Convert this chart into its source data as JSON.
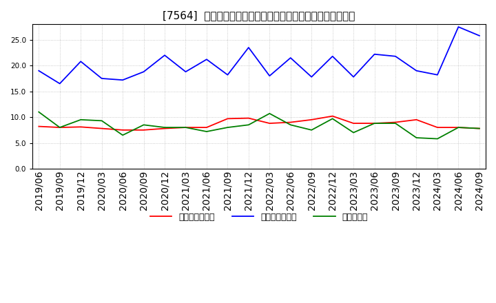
{
  "title": "[7564]  売上債権回転率、買入債務回転率、在庫回転率の推移",
  "dates": [
    "2019/06",
    "2019/09",
    "2019/12",
    "2020/03",
    "2020/06",
    "2020/09",
    "2020/12",
    "2021/03",
    "2021/06",
    "2021/09",
    "2021/12",
    "2022/03",
    "2022/06",
    "2022/09",
    "2022/12",
    "2023/03",
    "2023/06",
    "2023/09",
    "2023/12",
    "2024/03",
    "2024/06",
    "2024/09"
  ],
  "accounts_receivable_turnover": [
    8.2,
    8.0,
    8.1,
    7.8,
    7.5,
    7.5,
    7.8,
    8.0,
    8.0,
    9.7,
    9.8,
    8.8,
    9.0,
    9.5,
    10.2,
    8.8,
    8.8,
    9.0,
    9.5,
    8.0,
    8.0,
    7.8
  ],
  "accounts_payable_turnover": [
    19.0,
    16.5,
    20.8,
    17.5,
    17.2,
    18.8,
    22.0,
    18.8,
    21.2,
    18.2,
    23.5,
    18.0,
    21.5,
    17.8,
    21.8,
    17.8,
    22.2,
    21.8,
    19.0,
    18.2,
    27.5,
    25.8
  ],
  "inventory_turnover": [
    11.0,
    8.0,
    9.5,
    9.3,
    6.5,
    8.5,
    8.0,
    8.0,
    7.2,
    8.0,
    8.5,
    10.7,
    8.5,
    7.5,
    9.7,
    7.0,
    8.8,
    8.8,
    6.0,
    5.8,
    8.0,
    7.8
  ],
  "line_colors": {
    "accounts_receivable": "#ff0000",
    "accounts_payable": "#0000ff",
    "inventory": "#008000"
  },
  "legend_labels": {
    "accounts_receivable": "売上債権回転率",
    "accounts_payable": "買入債務回転率",
    "inventory": "在庫回転率"
  },
  "ylim": [
    0,
    28
  ],
  "yticks": [
    0.0,
    5.0,
    10.0,
    15.0,
    20.0,
    25.0
  ],
  "background_color": "#ffffff",
  "grid_color": "#aaaaaa",
  "title_fontsize": 11,
  "tick_fontsize": 7.5,
  "legend_fontsize": 9
}
